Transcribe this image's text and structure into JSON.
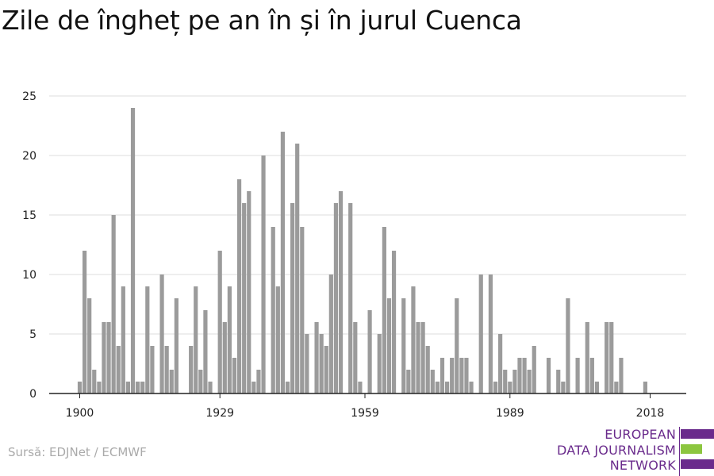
{
  "title": "Zile de îngheț pe an în și în jurul Cuenca",
  "source": "Sursă: EDJNet / ECMWF",
  "logo": {
    "line1": "EUROPEAN",
    "line2": "DATA JOURNALISM",
    "line3": "NETWORK"
  },
  "colors": {
    "bar": "#9b9b9b",
    "grid": "#dddddd",
    "axis": "#222222",
    "logo_purple": "#6a2b8c",
    "logo_green": "#8cc63f"
  },
  "chart_data": {
    "type": "bar",
    "title": "Zile de îngheț pe an în și în jurul Cuenca",
    "xlabel": "",
    "ylabel": "",
    "ylim": [
      0,
      25
    ],
    "yticks": [
      0,
      5,
      10,
      15,
      20,
      25
    ],
    "xticks": [
      1900,
      1929,
      1959,
      1989,
      2018
    ],
    "grid": true,
    "x": [
      1900,
      1901,
      1902,
      1903,
      1904,
      1905,
      1906,
      1907,
      1908,
      1909,
      1910,
      1911,
      1912,
      1913,
      1914,
      1915,
      1916,
      1917,
      1918,
      1919,
      1920,
      1921,
      1922,
      1923,
      1924,
      1925,
      1926,
      1927,
      1928,
      1929,
      1930,
      1931,
      1932,
      1933,
      1934,
      1935,
      1936,
      1937,
      1938,
      1939,
      1940,
      1941,
      1942,
      1943,
      1944,
      1945,
      1946,
      1947,
      1948,
      1949,
      1950,
      1951,
      1952,
      1953,
      1954,
      1955,
      1956,
      1957,
      1958,
      1959,
      1960,
      1961,
      1962,
      1963,
      1964,
      1965,
      1966,
      1967,
      1968,
      1969,
      1970,
      1971,
      1972,
      1973,
      1974,
      1975,
      1976,
      1977,
      1978,
      1979,
      1980,
      1981,
      1982,
      1983,
      1984,
      1985,
      1986,
      1987,
      1988,
      1989,
      1990,
      1991,
      1992,
      1993,
      1994,
      1995,
      1996,
      1997,
      1998,
      1999,
      2000,
      2001,
      2002,
      2003,
      2004,
      2005,
      2006,
      2007,
      2008,
      2009,
      2010,
      2011,
      2012,
      2013,
      2014,
      2015,
      2016,
      2017,
      2018
    ],
    "values": [
      1,
      12,
      8,
      2,
      1,
      6,
      6,
      15,
      4,
      9,
      1,
      24,
      1,
      1,
      9,
      4,
      0,
      10,
      4,
      2,
      8,
      0,
      0,
      4,
      9,
      2,
      7,
      1,
      0,
      12,
      6,
      9,
      3,
      18,
      16,
      17,
      1,
      2,
      20,
      0,
      14,
      9,
      22,
      1,
      16,
      21,
      14,
      5,
      0,
      6,
      5,
      4,
      10,
      16,
      17,
      0,
      16,
      6,
      1,
      0,
      7,
      0,
      5,
      14,
      8,
      12,
      0,
      8,
      2,
      9,
      6,
      6,
      4,
      2,
      1,
      3,
      1,
      3,
      8,
      3,
      3,
      1,
      0,
      10,
      0,
      10,
      1,
      5,
      2,
      1,
      2,
      3,
      3,
      2,
      4,
      0,
      0,
      3,
      0,
      2,
      1,
      8,
      0,
      3,
      0,
      6,
      3,
      1,
      0,
      6,
      6,
      1,
      3,
      0,
      0,
      0,
      0,
      1,
      0
    ]
  }
}
